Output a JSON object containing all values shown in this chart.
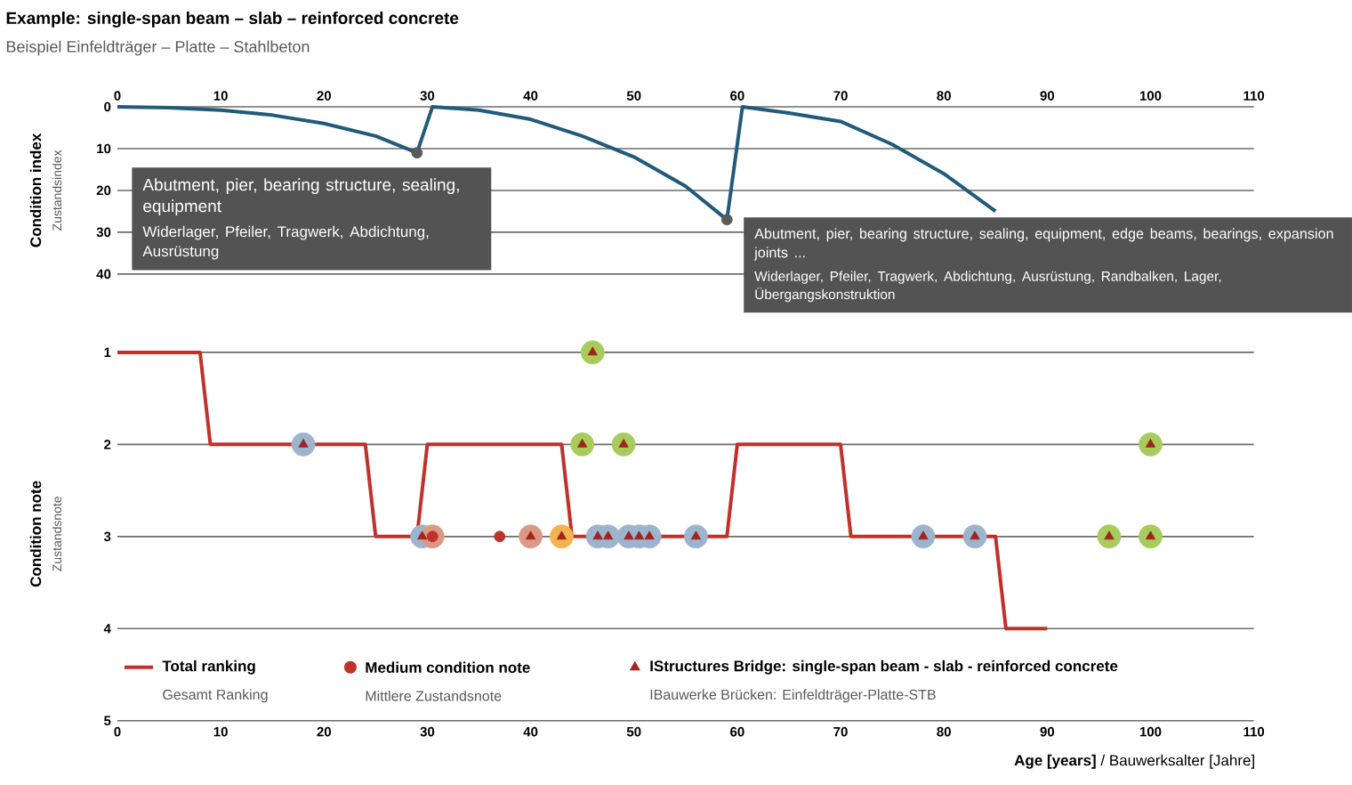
{
  "chart_data": [
    {
      "type": "line",
      "title": "Example: single-span beam – slab – reinforced concrete",
      "subtitle": "Beispiel Einfeldträger – Platte – Stahlbeton",
      "ylabel": "Condition index",
      "xlim": [
        0,
        110
      ],
      "xticks": [
        0,
        10,
        20,
        30,
        40,
        50,
        60,
        70,
        80,
        90,
        100,
        110
      ],
      "ylim": [
        40,
        0
      ],
      "yticks": [
        0,
        10,
        20,
        30,
        40
      ],
      "grid": "y",
      "annotations": [
        "Abutment, pier, bearing structure, sealing, equipment",
        "Widerlager, Pfeiler, Tragwerk, Abdichtung, Ausrüstung",
        "Abutment, pier, bearing structure, sealing, equipment, edge beams, bearings, expansion joints ...",
        "Widerlager, Pfeiler, Tragwerk, Abdichtung, Ausrüstung, Randbalken, Lager, Übergangskonstruktion",
        "Zustandsindex"
      ],
      "series": [
        {
          "color": "#215a7a",
          "x": [
            0,
            5,
            10,
            15,
            20,
            25,
            29,
            30.5,
            35,
            40,
            45,
            50,
            55,
            59,
            60.5,
            65,
            70,
            75,
            80,
            85
          ],
          "values": [
            0,
            0.2,
            0.8,
            2,
            4,
            7,
            11,
            0,
            0.8,
            3,
            7,
            12,
            19,
            27,
            0,
            1.5,
            3.5,
            9,
            16,
            25
          ]
        },
        {
          "type": "scatter",
          "color": "#5a5a5a",
          "x": [
            29,
            59
          ],
          "values": [
            11,
            27
          ]
        }
      ]
    },
    {
      "type": "line",
      "xlabel": "**Age [years]** / Bauwerksalter [Jahre]",
      "ylabel": "Condition note",
      "xlim": [
        0,
        110
      ],
      "xticks": [
        0,
        10,
        20,
        30,
        40,
        50,
        60,
        70,
        80,
        90,
        100,
        110
      ],
      "ylim": [
        5,
        1
      ],
      "yticks": [
        1,
        2,
        3,
        4,
        5
      ],
      "grid": "y",
      "legend": "bottom",
      "annotations": [
        "Zustandsnote",
        "Gesamt Ranking",
        "Mittlere Zustandsnote",
        "IBauwerke Brücken: Einfeldträger-Platte-STB"
      ],
      "series": [
        {
          "type": "scatter",
          "marker": "circle",
          "x": [
            18,
            29.5,
            30.5,
            40,
            43,
            46,
            45,
            49,
            46.5,
            47.5,
            49.5,
            50.5,
            51.5,
            56,
            78,
            83,
            96,
            100,
            100
          ],
          "values": [
            2,
            3,
            3,
            3,
            3,
            1,
            2,
            2,
            3,
            3,
            3,
            3,
            3,
            3,
            3,
            3,
            3,
            2,
            3
          ],
          "colors": [
            "#9db4cf",
            "#9db4cf",
            "#d99a85",
            "#d99a85",
            "#f2b451",
            "#a8cc5c",
            "#a8cc5c",
            "#a8cc5c",
            "#9db4cf",
            "#9db4cf",
            "#9db4cf",
            "#9db4cf",
            "#9db4cf",
            "#9db4cf",
            "#9db4cf",
            "#9db4cf",
            "#a8cc5c",
            "#a8cc5c",
            "#a8cc5c"
          ]
        },
        {
          "name": "Total ranking",
          "color": "#c0312b",
          "x": [
            0,
            8,
            9,
            24,
            25,
            29,
            30,
            43,
            44,
            59,
            60,
            70,
            71,
            85,
            86,
            90
          ],
          "values": [
            1,
            1,
            2,
            2,
            3,
            3,
            2,
            2,
            3,
            3,
            2,
            2,
            3,
            3,
            4,
            4
          ]
        },
        {
          "name": "Medium condition note",
          "type": "scatter",
          "marker": "circle",
          "color": "#c0312b",
          "x": [
            30.5,
            37
          ],
          "values": [
            3,
            3
          ]
        },
        {
          "name": "IStructures Bridge: single-span beam - slab - reinforced concrete",
          "type": "scatter",
          "marker": "triangle",
          "color": "#a3231c",
          "x": [
            18,
            29.5,
            40,
            43,
            46,
            45,
            49,
            46.5,
            47.5,
            49.5,
            50.5,
            51.5,
            56,
            78,
            83,
            96,
            100,
            100
          ],
          "values": [
            2,
            3,
            3,
            3,
            1,
            2,
            2,
            3,
            3,
            3,
            3,
            3,
            3,
            3,
            3,
            3,
            2,
            3
          ]
        }
      ]
    }
  ]
}
